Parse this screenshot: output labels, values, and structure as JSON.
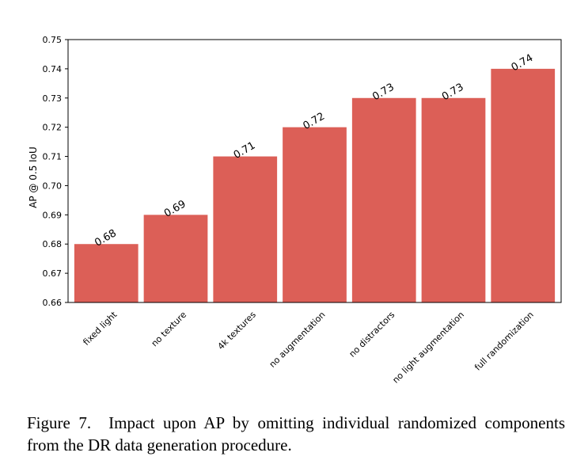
{
  "chart_data": {
    "type": "bar",
    "categories": [
      "fixed light",
      "no texture",
      "4k textures",
      "no augmentation",
      "no distractors",
      "no light augmentation",
      "full randomization"
    ],
    "values": [
      0.68,
      0.69,
      0.71,
      0.72,
      0.73,
      0.73,
      0.74
    ],
    "data_labels": [
      "0.68",
      "0.69",
      "0.71",
      "0.72",
      "0.73",
      "0.73",
      "0.74"
    ],
    "title": "",
    "xlabel": "",
    "ylabel": "AP @ 0.5 IoU",
    "ylim": [
      0.66,
      0.75
    ],
    "yticks": [
      "0.66",
      "0.67",
      "0.68",
      "0.69",
      "0.70",
      "0.71",
      "0.72",
      "0.73",
      "0.74",
      "0.75"
    ],
    "bar_color": "#dc5f57",
    "grid": false
  },
  "caption": {
    "label": "Figure 7.",
    "text": "Impact upon AP by omitting individual randomized components from the DR data generation procedure."
  }
}
